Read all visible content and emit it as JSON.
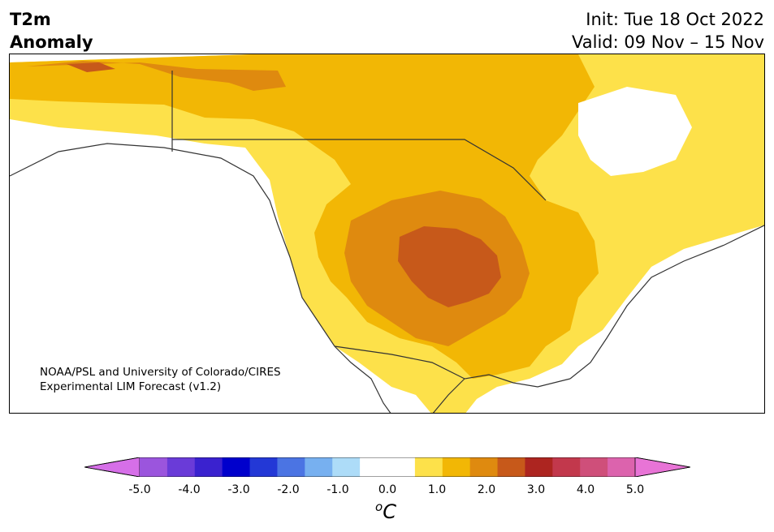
{
  "header": {
    "variable": "T2m",
    "field": "Anomaly",
    "init": "Init: Tue 18 Oct 2022",
    "valid": "Valid: 09 Nov – 15 Nov"
  },
  "credit": {
    "line1": "NOAA/PSL and University of Colorado/CIRES",
    "line2": "Experimental LIM Forecast (v1.2)"
  },
  "colorbar": {
    "ticks": [
      "-5.0",
      "-4.0",
      "-3.0",
      "-2.0",
      "-1.0",
      "0.0",
      "1.0",
      "2.0",
      "3.0",
      "4.0",
      "5.0"
    ],
    "unit_super": "o",
    "unit": "C",
    "colors": [
      "#d66fe8",
      "#9b55dd",
      "#6a3bd8",
      "#3a22cf",
      "#0000cc",
      "#2338d6",
      "#4b74e3",
      "#77b0f0",
      "#addcf8",
      "#ffffff",
      "#ffffff",
      "#fde14a",
      "#f2b705",
      "#df8a0f",
      "#c7591a",
      "#ad2520",
      "#c2384c",
      "#cf4f7a",
      "#dc63ad",
      "#e874d6"
    ]
  },
  "map": {
    "region": "North America",
    "colors": {
      "c05": "#fde14a",
      "c10": "#f2b705",
      "c15": "#df8a0f",
      "c20": "#c7591a",
      "c25": "#ad2520",
      "land_lines": "#333333"
    }
  }
}
